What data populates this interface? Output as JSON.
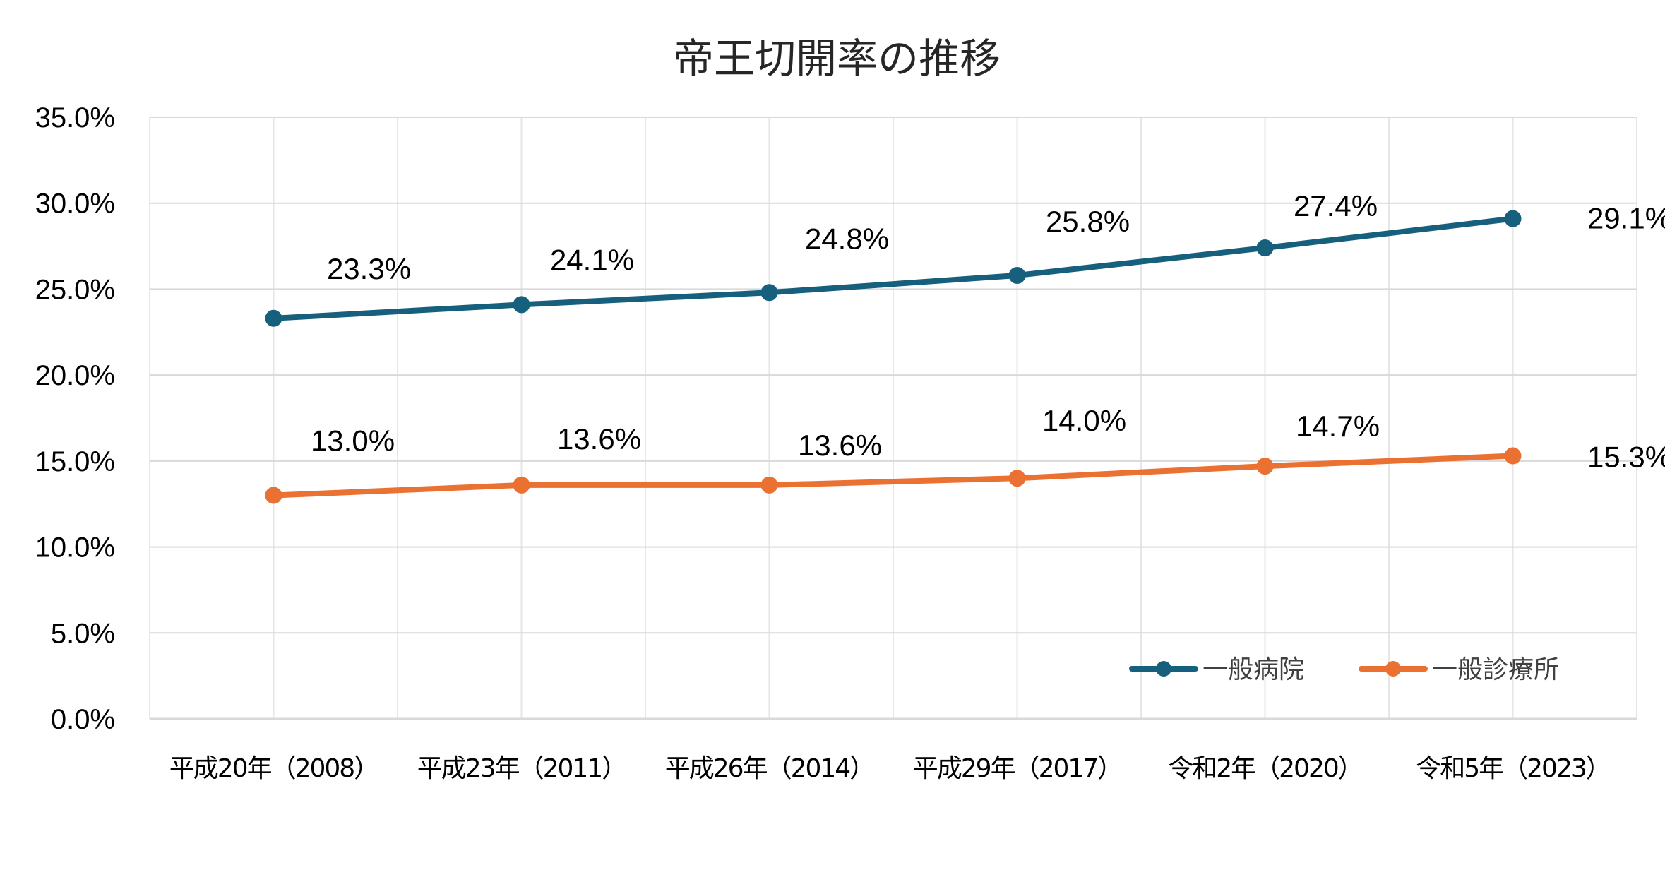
{
  "chart_data": {
    "type": "line",
    "title": "帝王切開率の推移",
    "categories": [
      "平成20年（2008）",
      "平成23年（2011）",
      "平成26年（2014）",
      "平成29年（2017）",
      "令和2年（2020）",
      "令和5年（2023）"
    ],
    "series": [
      {
        "name": "一般病院",
        "color": "#17607d",
        "values": [
          23.3,
          24.1,
          24.8,
          25.8,
          27.4,
          29.1
        ],
        "labels": [
          "23.3%",
          "24.1%",
          "24.8%",
          "25.8%",
          "27.4%",
          "29.1%"
        ]
      },
      {
        "name": "一般診療所",
        "color": "#eb7133",
        "values": [
          13.0,
          13.6,
          13.6,
          14.0,
          14.7,
          15.3
        ],
        "labels": [
          "13.0%",
          "13.6%",
          "13.6%",
          "14.0%",
          "14.7%",
          "15.3%"
        ]
      }
    ],
    "ylim": [
      0,
      35
    ],
    "yticks": [
      0,
      5,
      10,
      15,
      20,
      25,
      30,
      35
    ],
    "ytick_labels": [
      "0.0%",
      "5.0%",
      "10.0%",
      "15.0%",
      "20.0%",
      "25.0%",
      "30.0%",
      "35.0%"
    ],
    "xlabel": "",
    "ylabel": "",
    "grid": true,
    "legend_position": "bottom-right"
  }
}
